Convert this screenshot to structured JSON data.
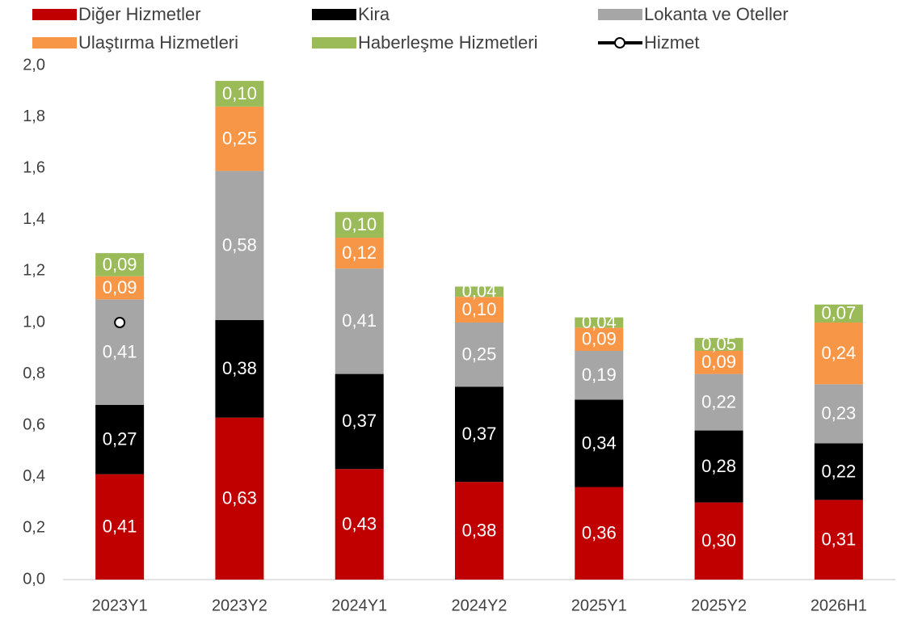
{
  "chart_data": {
    "type": "bar",
    "stacked": true,
    "categories": [
      "2023Y1",
      "2023Y2",
      "2024Y1",
      "2024Y2",
      "2025Y1",
      "2025Y2",
      "2026H1"
    ],
    "series": [
      {
        "name": "Diğer Hizmetler",
        "color": "#c00000",
        "values": [
          0.41,
          0.63,
          0.43,
          0.38,
          0.36,
          0.3,
          0.31
        ],
        "value_labels": [
          "0,41",
          "0,63",
          "0,43",
          "0,38",
          "0,36",
          "0,30",
          "0,31"
        ]
      },
      {
        "name": "Kira",
        "color": "#000000",
        "values": [
          0.27,
          0.38,
          0.37,
          0.37,
          0.34,
          0.28,
          0.22
        ],
        "value_labels": [
          "0,27",
          "0,38",
          "0,37",
          "0,37",
          "0,34",
          "0,28",
          "0,22"
        ]
      },
      {
        "name": "Lokanta ve Oteller",
        "color": "#a6a6a6",
        "values": [
          0.41,
          0.58,
          0.41,
          0.25,
          0.19,
          0.22,
          0.23
        ],
        "value_labels": [
          "0,41",
          "0,58",
          "0,41",
          "0,25",
          "0,19",
          "0,22",
          "0,23"
        ]
      },
      {
        "name": "Ulaştırma Hizmetleri",
        "color": "#f79646",
        "values": [
          0.09,
          0.25,
          0.12,
          0.1,
          0.09,
          0.09,
          0.24
        ],
        "value_labels": [
          "0,09",
          "0,25",
          "0,12",
          "0,10",
          "0,09",
          "0,09",
          "0,24"
        ]
      },
      {
        "name": "Haberleşme Hizmetleri",
        "color": "#9bbb59",
        "values": [
          0.09,
          0.1,
          0.1,
          0.04,
          0.04,
          0.05,
          0.07
        ],
        "value_labels": [
          "0,09",
          "0,10",
          "0,10",
          "0,04",
          "0,04",
          "0,05",
          "0,07"
        ]
      },
      {
        "name": "Hizmet",
        "type": "line",
        "color": "#000000",
        "values": [
          1.0,
          null,
          null,
          null,
          null,
          null,
          null
        ]
      }
    ],
    "ylim": [
      0,
      2
    ],
    "yticks": [
      {
        "value": 0,
        "label": "0,0"
      },
      {
        "value": 0.2,
        "label": "0,2"
      },
      {
        "value": 0.4,
        "label": "0,4"
      },
      {
        "value": 0.6,
        "label": "0,6"
      },
      {
        "value": 0.8,
        "label": "0,8"
      },
      {
        "value": 1.0,
        "label": "1,0"
      },
      {
        "value": 1.2,
        "label": "1,2"
      },
      {
        "value": 1.4,
        "label": "1,4"
      },
      {
        "value": 1.6,
        "label": "1,6"
      },
      {
        "value": 1.8,
        "label": "1,8"
      },
      {
        "value": 2.0,
        "label": "2,0"
      }
    ],
    "grid": false,
    "legend": "top"
  }
}
